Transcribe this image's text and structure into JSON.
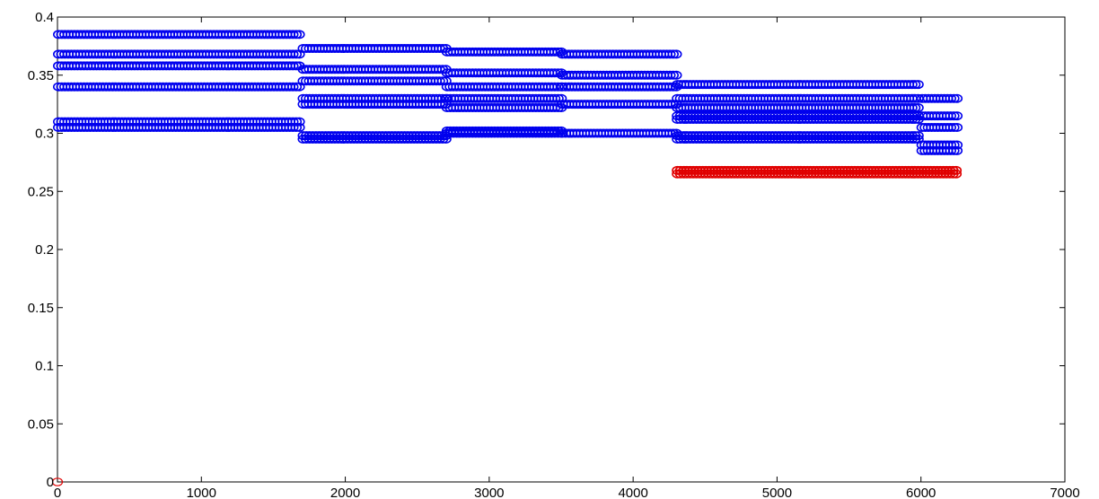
{
  "chart_data": {
    "type": "scatter",
    "title": "",
    "xlabel": "",
    "ylabel": "",
    "xlim": [
      0,
      7000
    ],
    "ylim": [
      0,
      0.4
    ],
    "x_ticks": [
      "0",
      "1000",
      "2000",
      "3000",
      "4000",
      "5000",
      "6000",
      "7000"
    ],
    "y_ticks": [
      "0",
      "0.05",
      "0.1",
      "0.15",
      "0.2",
      "0.25",
      "0.3",
      "0.35",
      "0.4"
    ],
    "grid": false,
    "legend": "none",
    "marker": "open-circle",
    "series": [
      {
        "color": "#0000ee",
        "segments": [
          [
            0,
            1700,
            [
              0.385,
              0.368,
              0.358,
              0.34,
              0.31,
              0.305
            ]
          ],
          [
            1700,
            2700,
            [
              0.373,
              0.355,
              0.345,
              0.33,
              0.325,
              0.298,
              0.295
            ]
          ],
          [
            2700,
            3500,
            [
              0.37,
              0.352,
              0.34,
              0.33,
              0.322,
              0.302,
              0.3
            ]
          ],
          [
            3500,
            4300,
            [
              0.368,
              0.35,
              0.34,
              0.325,
              0.3
            ]
          ],
          [
            4300,
            6000,
            [
              0.342,
              0.33,
              0.322,
              0.315,
              0.312,
              0.298,
              0.295
            ]
          ],
          [
            6000,
            6250,
            [
              0.33,
              0.315,
              0.305,
              0.29,
              0.285
            ]
          ]
        ]
      },
      {
        "color": "#e00000",
        "segments": [
          [
            4300,
            6250,
            [
              0.268,
              0.265
            ]
          ]
        ],
        "points": [
          [
            0,
            0.0
          ]
        ]
      }
    ]
  }
}
